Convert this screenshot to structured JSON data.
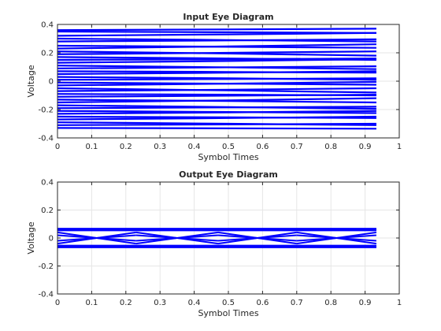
{
  "chart_data": [
    {
      "type": "line",
      "title": "Input Eye Diagram",
      "xlabel": "Symbol Times",
      "ylabel": "Voltage",
      "xlim": [
        0,
        1
      ],
      "ylim": [
        -0.4,
        0.4
      ],
      "xticks": [
        "0",
        "0.1",
        "0.2",
        "0.3",
        "0.4",
        "0.5",
        "0.6",
        "0.7",
        "0.8",
        "0.9",
        "1"
      ],
      "yticks": [
        "-0.4",
        "-0.2",
        "0",
        "0.2",
        "0.4"
      ],
      "grid": true,
      "trace_color": "#0000ff",
      "trace_x_range": [
        0,
        0.933
      ],
      "trace_levels": [
        0.36,
        0.35,
        0.32,
        0.3,
        0.28,
        0.25,
        0.23,
        0.21,
        0.19,
        0.17,
        0.15,
        0.13,
        0.11,
        0.09,
        0.07,
        0.05,
        0.03,
        0.01,
        -0.01,
        -0.03,
        -0.05,
        -0.07,
        -0.09,
        -0.11,
        -0.13,
        -0.15,
        -0.17,
        -0.19,
        -0.21,
        -0.23,
        -0.25,
        -0.27,
        -0.29,
        -0.31,
        -0.33
      ],
      "trace_drift": [
        0.01,
        -0.01,
        0.02,
        -0.02,
        0.015,
        -0.015,
        0.03,
        -0.03,
        0.02,
        -0.02,
        0.01,
        0.025,
        -0.025,
        0.015,
        -0.01,
        0.02,
        -0.02,
        0.01,
        -0.015,
        0.025,
        -0.03,
        0.02,
        -0.01,
        0.015,
        -0.02,
        0.03,
        -0.025,
        0.01,
        -0.015,
        0.02,
        -0.01,
        0.02,
        -0.02,
        0.01,
        -0.005
      ]
    },
    {
      "type": "line",
      "title": "Output Eye Diagram",
      "xlabel": "Symbol Times",
      "ylabel": "Voltage",
      "xlim": [
        0,
        1
      ],
      "ylim": [
        -0.4,
        0.4
      ],
      "xticks": [
        "0",
        "0.1",
        "0.2",
        "0.3",
        "0.4",
        "0.5",
        "0.6",
        "0.7",
        "0.8",
        "0.9",
        "1"
      ],
      "yticks": [
        "-0.4",
        "-0.2",
        "0",
        "0.2",
        "0.4"
      ],
      "grid": true,
      "trace_color": "#0000ff",
      "trace_x_range": [
        0,
        0.933
      ],
      "trace_levels": [
        0.066,
        0.062,
        0.058,
        0.055,
        -0.055,
        -0.058,
        -0.062,
        -0.066
      ],
      "crossing_x": [
        0.23,
        0.47,
        0.7,
        0.933
      ],
      "crossing_levels": [
        0.04,
        0.02,
        -0.02,
        -0.04
      ]
    }
  ]
}
